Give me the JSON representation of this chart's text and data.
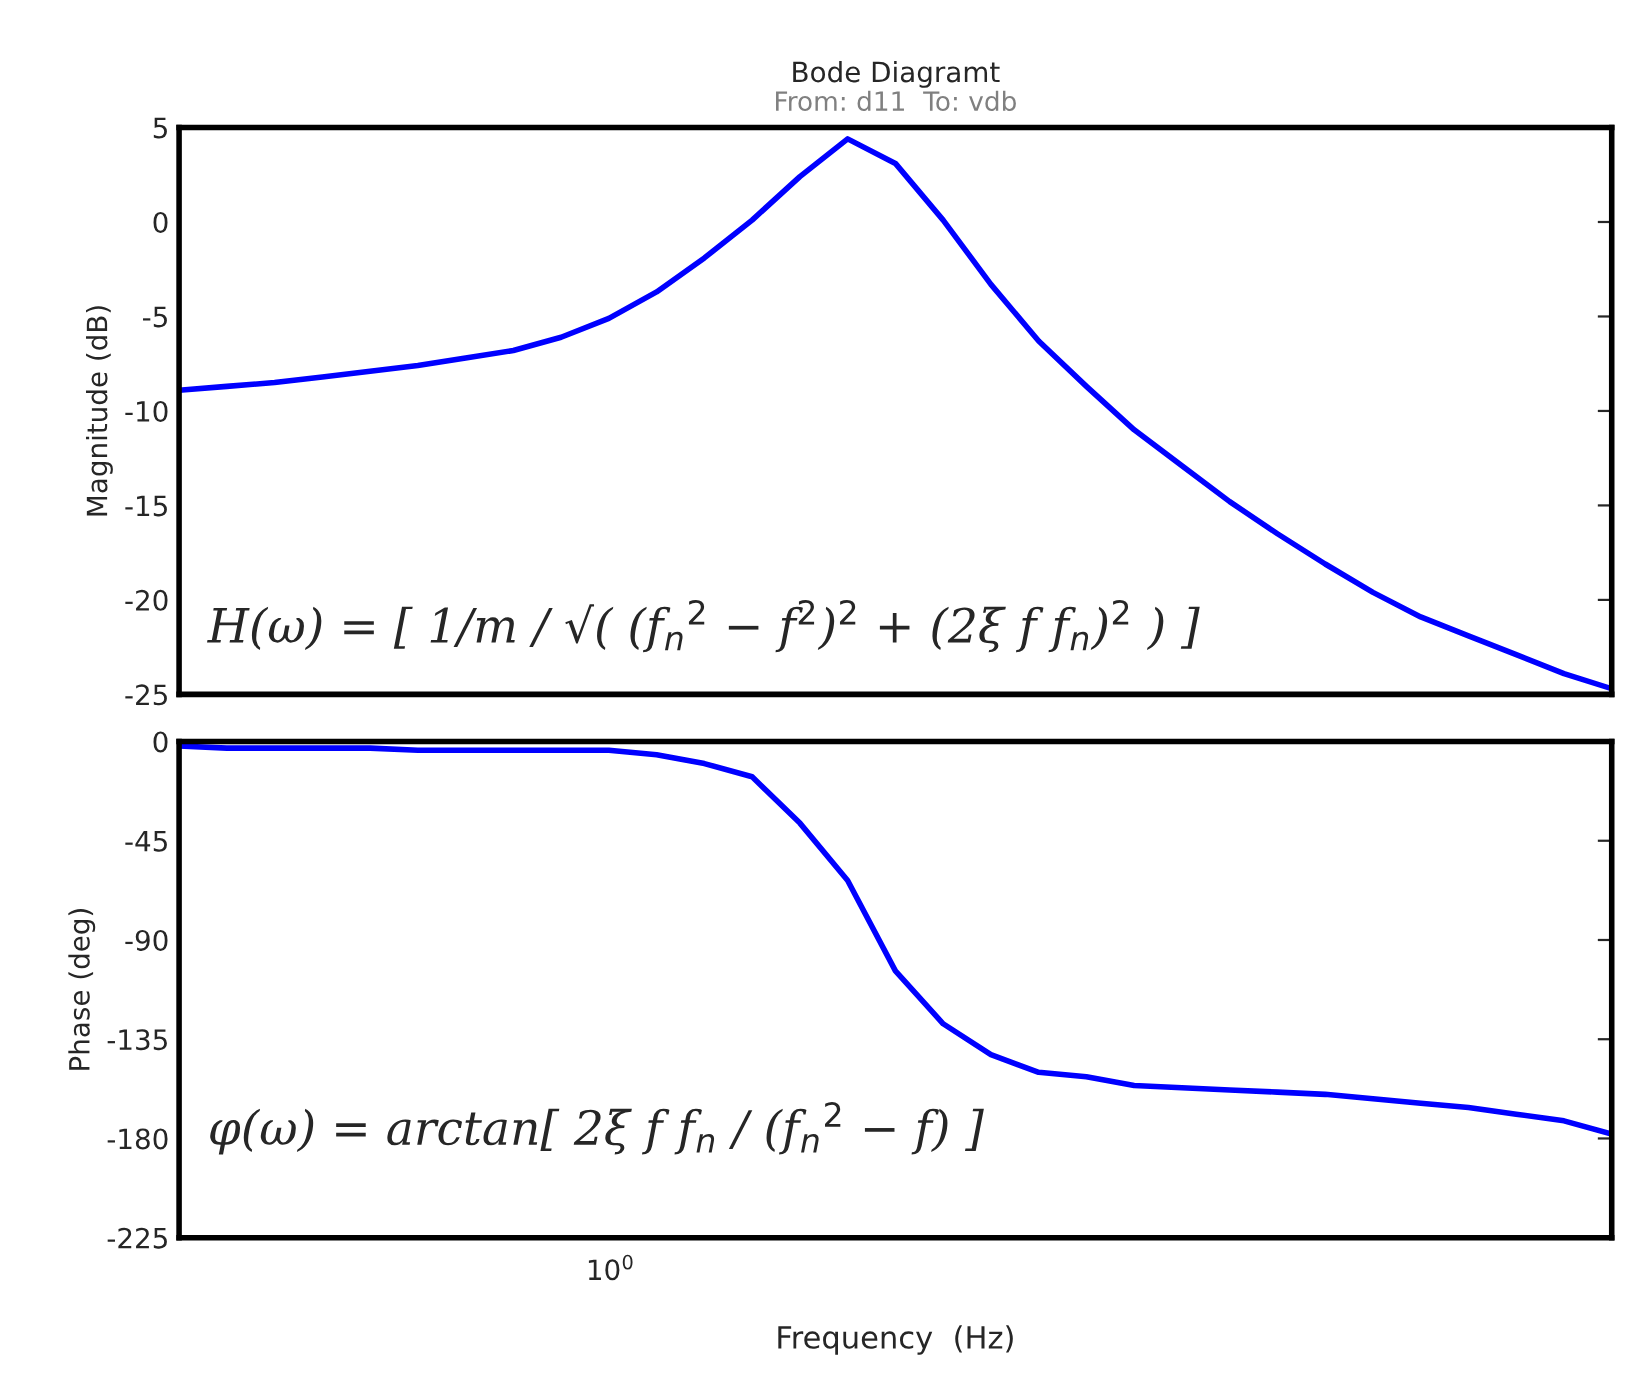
{
  "chart_data": [
    {
      "type": "line",
      "title": "Bode Diagramt",
      "subtitle": "From: d11  To: vdb",
      "ylabel": "Magnitude (dB)",
      "grid": false,
      "marker": "none",
      "line_style": "solid",
      "categories": [
        null,
        null,
        null,
        null,
        null,
        null,
        null,
        null,
        null,
        null,
        null,
        null,
        null,
        null,
        null,
        null,
        null,
        null,
        null,
        null,
        null,
        null,
        null,
        null,
        null,
        null,
        null,
        null,
        null,
        null,
        null
      ],
      "ylim": [
        -25,
        5
      ],
      "yticks": [
        -25,
        -20,
        -15,
        -10,
        -5,
        0,
        5
      ],
      "annotations": [
        "H(ω) = [ 1/m / √( (f$_{n}$$^{2}$ − f$^{2}$)$^{2}$ + (2ξ f f$_{n}$)$^{2}$ ) ]"
      ],
      "series": [
        {
          "color": "#0000ff",
          "values": [
            -8.9,
            -8.7,
            -8.5,
            -8.2,
            -7.9,
            -7.6,
            -7.2,
            -6.8,
            -6.1,
            -5.1,
            -3.7,
            -1.9,
            0.1,
            2.4,
            4.4,
            3.1,
            0.1,
            -3.3,
            -6.3,
            -8.7,
            -11.0,
            -12.9,
            -14.8,
            -16.5,
            -18.1,
            -19.6,
            -20.9,
            -21.9,
            -22.9,
            -23.9,
            -24.7
          ]
        }
      ]
    },
    {
      "type": "line",
      "xlabel": "Frequency  (Hz)",
      "ylabel": "Phase (deg)",
      "grid": false,
      "marker": "none",
      "line_style": "solid",
      "categories": [
        null,
        null,
        null,
        null,
        null,
        null,
        null,
        null,
        null,
        null,
        null,
        null,
        null,
        null,
        null,
        null,
        null,
        null,
        null,
        null,
        null,
        null,
        null,
        null,
        null,
        null,
        null,
        null,
        null,
        null,
        null
      ],
      "ylim": [
        -225,
        0
      ],
      "yticks": [
        -225,
        -180,
        -135,
        -90,
        -45,
        0
      ],
      "annotations": [
        "φ(ω) = arctan[ 2ξ f f$_{n}$ / (f$_{n}$$^{2}$ − f) ]",
        "10$^{0}$"
      ],
      "series": [
        {
          "color": "#0000ff",
          "values": [
            -2,
            -3,
            -3,
            -3,
            -3,
            -4,
            -4,
            -4,
            -4,
            -4,
            -6,
            -10,
            -16,
            -37,
            -63,
            -104,
            -128,
            -142,
            -150,
            -152,
            -156,
            -157,
            -158,
            -159,
            -160,
            -162,
            -164,
            -166,
            -169,
            -172,
            -178
          ]
        }
      ]
    }
  ]
}
